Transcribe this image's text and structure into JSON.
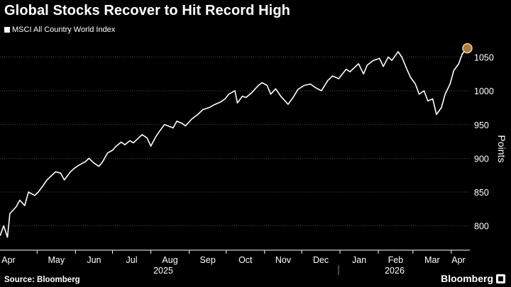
{
  "title": "Global Stocks Recover to Hit Record High",
  "source": "Source: Bloomberg",
  "brand": "Bloomberg",
  "colors": {
    "background": "#000000",
    "line": "#ffffff",
    "grid": "#4d4d4d",
    "highlight": "#f5cfa0",
    "highlight_fill": "#b07a3e"
  },
  "chart_data": {
    "type": "line",
    "title": "Global Stocks Recover to Hit Record High",
    "ylabel": "Points",
    "xlabel": "",
    "legend_position": "top-left",
    "grid": "horizontal dotted",
    "ylim": [
      765,
      1082
    ],
    "y_ticks": [
      800,
      850,
      900,
      950,
      1000,
      1050
    ],
    "x_ticks": [
      "Apr",
      "May",
      "Jun",
      "Jul",
      "Aug",
      "Sep",
      "Oct",
      "Nov",
      "Dec",
      "Jan",
      "Feb",
      "Mar",
      "Apr"
    ],
    "x_groups": [
      {
        "label": "2025",
        "months": [
          "Apr",
          "May",
          "Jun",
          "Jul",
          "Aug",
          "Sep",
          "Oct",
          "Nov",
          "Dec"
        ]
      },
      {
        "label": "2026",
        "months": [
          "Jan",
          "Feb",
          "Mar",
          "Apr"
        ]
      }
    ],
    "series": [
      {
        "name": "MSCI All Country World Index",
        "points": [
          [
            "2025-04-01",
            785
          ],
          [
            "2025-04-04",
            800
          ],
          [
            "2025-04-07",
            783
          ],
          [
            "2025-04-09",
            818
          ],
          [
            "2025-04-14",
            828
          ],
          [
            "2025-04-17",
            838
          ],
          [
            "2025-04-21",
            830
          ],
          [
            "2025-04-24",
            850
          ],
          [
            "2025-04-29",
            845
          ],
          [
            "2025-05-02",
            850
          ],
          [
            "2025-05-06",
            860
          ],
          [
            "2025-05-09",
            868
          ],
          [
            "2025-05-13",
            875
          ],
          [
            "2025-05-16",
            880
          ],
          [
            "2025-05-20",
            878
          ],
          [
            "2025-05-23",
            868
          ],
          [
            "2025-05-28",
            880
          ],
          [
            "2025-05-31",
            885
          ],
          [
            "2025-06-04",
            890
          ],
          [
            "2025-06-09",
            895
          ],
          [
            "2025-06-12",
            900
          ],
          [
            "2025-06-16",
            893
          ],
          [
            "2025-06-20",
            888
          ],
          [
            "2025-06-23",
            895
          ],
          [
            "2025-06-27",
            908
          ],
          [
            "2025-07-01",
            912
          ],
          [
            "2025-07-04",
            918
          ],
          [
            "2025-07-08",
            924
          ],
          [
            "2025-07-11",
            920
          ],
          [
            "2025-07-15",
            926
          ],
          [
            "2025-07-18",
            923
          ],
          [
            "2025-07-22",
            930
          ],
          [
            "2025-07-25",
            935
          ],
          [
            "2025-07-29",
            930
          ],
          [
            "2025-08-01",
            918
          ],
          [
            "2025-08-05",
            932
          ],
          [
            "2025-08-08",
            940
          ],
          [
            "2025-08-12",
            950
          ],
          [
            "2025-08-15",
            948
          ],
          [
            "2025-08-19",
            945
          ],
          [
            "2025-08-22",
            955
          ],
          [
            "2025-08-26",
            952
          ],
          [
            "2025-08-29",
            948
          ],
          [
            "2025-09-03",
            958
          ],
          [
            "2025-09-08",
            965
          ],
          [
            "2025-09-12",
            972
          ],
          [
            "2025-09-17",
            975
          ],
          [
            "2025-09-22",
            980
          ],
          [
            "2025-09-26",
            983
          ],
          [
            "2025-09-30",
            988
          ],
          [
            "2025-10-03",
            995
          ],
          [
            "2025-10-08",
            1000
          ],
          [
            "2025-10-10",
            982
          ],
          [
            "2025-10-14",
            992
          ],
          [
            "2025-10-17",
            990
          ],
          [
            "2025-10-22",
            998
          ],
          [
            "2025-10-27",
            1008
          ],
          [
            "2025-10-30",
            1012
          ],
          [
            "2025-11-03",
            1008
          ],
          [
            "2025-11-06",
            995
          ],
          [
            "2025-11-10",
            1003
          ],
          [
            "2025-11-14",
            992
          ],
          [
            "2025-11-20",
            980
          ],
          [
            "2025-11-24",
            990
          ],
          [
            "2025-11-28",
            1002
          ],
          [
            "2025-12-03",
            1008
          ],
          [
            "2025-12-08",
            1010
          ],
          [
            "2025-12-12",
            1005
          ],
          [
            "2025-12-17",
            1000
          ],
          [
            "2025-12-22",
            1015
          ],
          [
            "2025-12-26",
            1022
          ],
          [
            "2025-12-31",
            1018
          ],
          [
            "2026-01-06",
            1032
          ],
          [
            "2026-01-09",
            1028
          ],
          [
            "2026-01-13",
            1035
          ],
          [
            "2026-01-16",
            1040
          ],
          [
            "2026-01-20",
            1025
          ],
          [
            "2026-01-23",
            1038
          ],
          [
            "2026-01-28",
            1045
          ],
          [
            "2026-02-02",
            1048
          ],
          [
            "2026-02-05",
            1036
          ],
          [
            "2026-02-09",
            1050
          ],
          [
            "2026-02-12",
            1045
          ],
          [
            "2026-02-17",
            1058
          ],
          [
            "2026-02-20",
            1050
          ],
          [
            "2026-02-24",
            1032
          ],
          [
            "2026-02-27",
            1020
          ],
          [
            "2026-03-03",
            1010
          ],
          [
            "2026-03-06",
            995
          ],
          [
            "2026-03-10",
            1000
          ],
          [
            "2026-03-13",
            985
          ],
          [
            "2026-03-17",
            988
          ],
          [
            "2026-03-20",
            965
          ],
          [
            "2026-03-24",
            975
          ],
          [
            "2026-03-27",
            995
          ],
          [
            "2026-03-31",
            1010
          ],
          [
            "2026-04-03",
            1030
          ],
          [
            "2026-04-07",
            1040
          ],
          [
            "2026-04-10",
            1055
          ],
          [
            "2026-04-14",
            1063
          ]
        ]
      }
    ],
    "highlight_point": [
      "2026-04-14",
      1063
    ]
  }
}
